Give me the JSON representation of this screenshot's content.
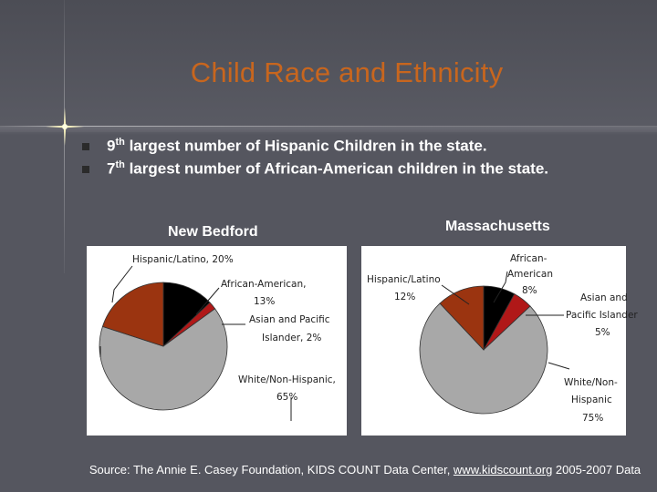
{
  "slide": {
    "title": "Child Race and Ethnicity",
    "bullets": [
      {
        "rank": "9",
        "suffix": "th",
        "text": " largest number of Hispanic Children in the state."
      },
      {
        "rank": "7",
        "suffix": "th",
        "text": " largest number of African-American children in the state."
      }
    ],
    "source_prefix": "Source: The Annie E. Casey Foundation, KIDS COUNT Data Center, ",
    "source_link": "www.kidscount.org",
    "source_suffix": " 2005-2007 Data"
  },
  "colors": {
    "title": "#c8661e",
    "hispanic": "#9b3410",
    "african_american": "#000000",
    "asian": "#b01818",
    "white": "#a8a8a8"
  },
  "chart_data": [
    {
      "type": "pie",
      "title": "New Bedford",
      "series": [
        {
          "name": "Hispanic/Latino",
          "value": 20,
          "label": "Hispanic/Latino, 20%"
        },
        {
          "name": "African-American",
          "value": 13,
          "label_line1": "African-American,",
          "label_line2": "13%"
        },
        {
          "name": "Asian and Pacific Islander",
          "value": 2,
          "label_line1": "Asian and Pacific",
          "label_line2": "Islander, 2%"
        },
        {
          "name": "White/Non-Hispanic",
          "value": 65,
          "label_line1": "White/Non-Hispanic,",
          "label_line2": "65%"
        }
      ]
    },
    {
      "type": "pie",
      "title": "Massachusetts",
      "series": [
        {
          "name": "Hispanic/Latino",
          "value": 12,
          "label_line1": "Hispanic/Latino",
          "label_line2": "12%"
        },
        {
          "name": "African-American",
          "value": 8,
          "label_line1": "African-",
          "label_line2": "American",
          "label_line3": "8%"
        },
        {
          "name": "Asian and Pacific Islander",
          "value": 5,
          "label_line1": "Asian and",
          "label_line2": "Pacific Islander",
          "label_line3": "5%"
        },
        {
          "name": "White/Non-Hispanic",
          "value": 75,
          "label_line1": "White/Non-",
          "label_line2": "Hispanic",
          "label_line3": "75%"
        }
      ]
    }
  ]
}
